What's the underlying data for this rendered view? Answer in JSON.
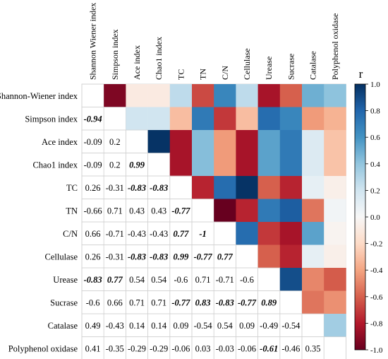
{
  "chart_data": {
    "type": "heatmap",
    "title": "",
    "variables": [
      "Shannon-Wiener index",
      "Simpson index",
      "Ace index",
      "Chao1 index",
      "TC",
      "TN",
      "C/N",
      "Cellulase",
      "Urease",
      "Sucrase",
      "Catalase",
      "Polyphenol oxidase"
    ],
    "column_labels": [
      "Shannon Wiener index",
      "Simpson index",
      "Ace index",
      "Chao1 index",
      "TC",
      "TN",
      "C/N",
      "Cellulase",
      "Urease",
      "Sucrase",
      "Catalase",
      "Polyphenol oxidase"
    ],
    "lower_triangle_labels": [
      [
        "",
        "",
        "",
        "",
        "",
        "",
        "",
        "",
        "",
        "",
        "",
        ""
      ],
      [
        "-0.94",
        "",
        "",
        "",
        "",
        "",
        "",
        "",
        "",
        "",
        "",
        ""
      ],
      [
        "-0.09",
        "0.2",
        "",
        "",
        "",
        "",
        "",
        "",
        "",
        "",
        "",
        ""
      ],
      [
        "-0.09",
        "0.2",
        "0.99",
        "",
        "",
        "",
        "",
        "",
        "",
        "",
        "",
        ""
      ],
      [
        "0.26",
        "-0.31",
        "-0.83",
        "-0.83",
        "",
        "",
        "",
        "",
        "",
        "",
        "",
        ""
      ],
      [
        "-0.66",
        "0.71",
        "0.43",
        "0.43",
        "-0.77",
        "",
        "",
        "",
        "",
        "",
        "",
        ""
      ],
      [
        "0.66",
        "-0.71",
        "-0.43",
        "-0.43",
        "0.77",
        "-1",
        "",
        "",
        "",
        "",
        "",
        ""
      ],
      [
        "0.26",
        "-0.31",
        "-0.83",
        "-0.83",
        "0.99",
        "-0.77",
        "0.77",
        "",
        "",
        "",
        "",
        ""
      ],
      [
        "-0.83",
        "0.77",
        "0.54",
        "0.54",
        "-0.6",
        "0.71",
        "-0.71",
        "-0.6",
        "",
        "",
        "",
        ""
      ],
      [
        "-0.6",
        "0.66",
        "0.71",
        "0.71",
        "-0.77",
        "0.83",
        "-0.83",
        "-0.77",
        "0.89",
        "",
        "",
        ""
      ],
      [
        "0.49",
        "-0.43",
        "0.14",
        "0.14",
        "0.09",
        "-0.54",
        "0.54",
        "0.09",
        "-0.49",
        "-0.54",
        "",
        ""
      ],
      [
        "0.41",
        "-0.35",
        "-0.29",
        "-0.29",
        "-0.06",
        "0.03",
        "-0.03",
        "-0.06",
        "-0.61",
        "-0.46",
        "0.35",
        ""
      ]
    ],
    "significant": [
      [
        1,
        0
      ],
      [
        3,
        2
      ],
      [
        4,
        2
      ],
      [
        4,
        3
      ],
      [
        5,
        4
      ],
      [
        6,
        4
      ],
      [
        6,
        5
      ],
      [
        7,
        2
      ],
      [
        7,
        3
      ],
      [
        7,
        4
      ],
      [
        7,
        5
      ],
      [
        7,
        6
      ],
      [
        8,
        0
      ],
      [
        8,
        1
      ],
      [
        9,
        4
      ],
      [
        9,
        5
      ],
      [
        9,
        6
      ],
      [
        9,
        7
      ],
      [
        9,
        8
      ],
      [
        11,
        8
      ]
    ],
    "colorbar": {
      "label": "r",
      "ticks": [
        "1.0",
        "0.8",
        "0.6",
        "0.4",
        "0.2",
        "0.0",
        "-0.2",
        "-0.4",
        "-0.6",
        "-0.8",
        "-1.0"
      ],
      "range": [
        -1,
        1
      ]
    },
    "colors": {
      "strong_positive": "#053061",
      "positive": "#4393c3",
      "neutral": "#f7f7f7",
      "negative": "#d6604d",
      "strong_negative": "#67001f"
    },
    "upper_triangle": "color-filled cells",
    "lower_triangle": "numeric r values"
  }
}
